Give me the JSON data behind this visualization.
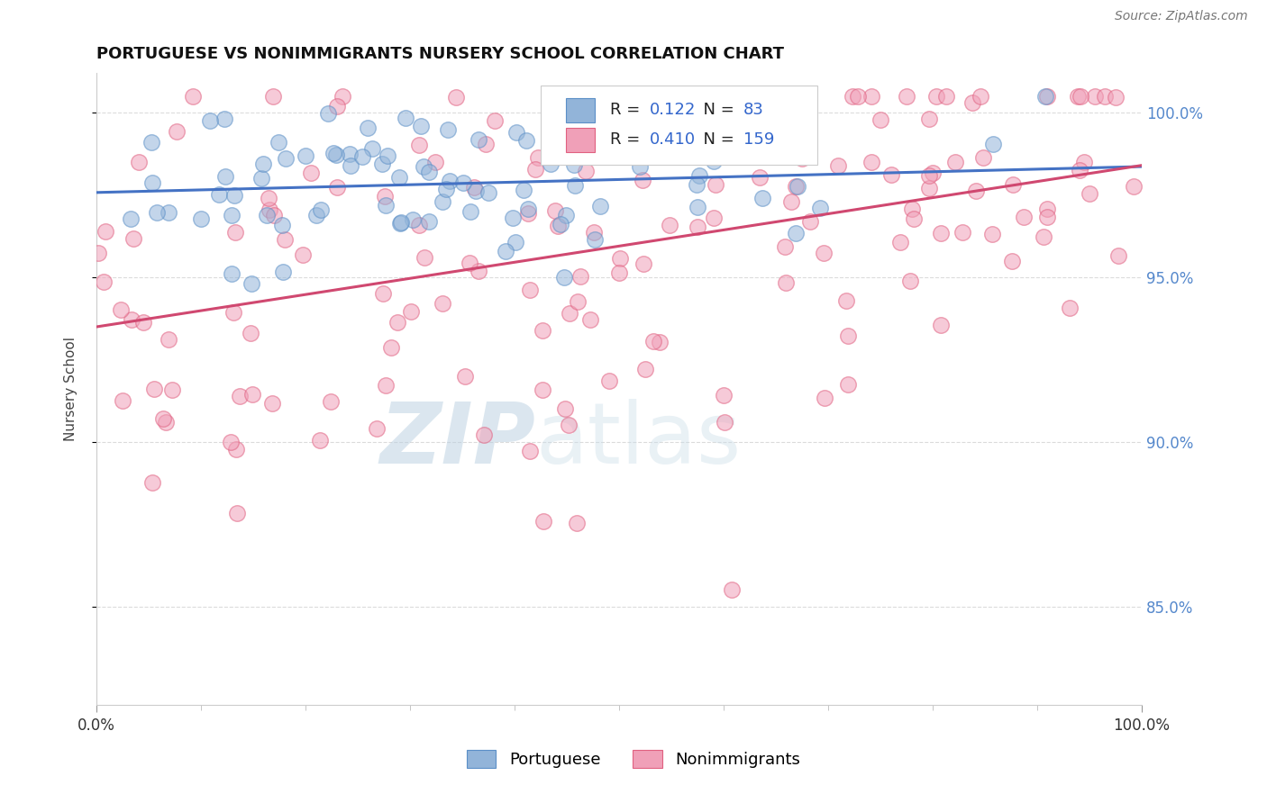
{
  "title": "PORTUGUESE VS NONIMMIGRANTS NURSERY SCHOOL CORRELATION CHART",
  "source_text": "Source: ZipAtlas.com",
  "ylabel": "Nursery School",
  "xlim": [
    0.0,
    1.0
  ],
  "ylim": [
    0.82,
    1.012
  ],
  "ytick_labels": [
    "85.0%",
    "90.0%",
    "95.0%",
    "100.0%"
  ],
  "ytick_values": [
    0.85,
    0.9,
    0.95,
    1.0
  ],
  "portuguese_color": "#92b4d9",
  "portuguese_edge_color": "#5b8fc7",
  "nonimmigrant_color": "#f0a0b8",
  "nonimmigrant_edge_color": "#e06080",
  "portuguese_line_color": "#4472c4",
  "nonimmigrant_line_color": "#d04870",
  "portuguese_R": 0.122,
  "portuguese_N": 83,
  "nonimmigrant_R": 0.41,
  "nonimmigrant_N": 159,
  "background_color": "#ffffff",
  "grid_color": "#cccccc",
  "right_axis_color": "#5588cc",
  "watermark_color": "#c8daea",
  "portuguese_seed": 42,
  "nonimmigrant_seed": 7
}
